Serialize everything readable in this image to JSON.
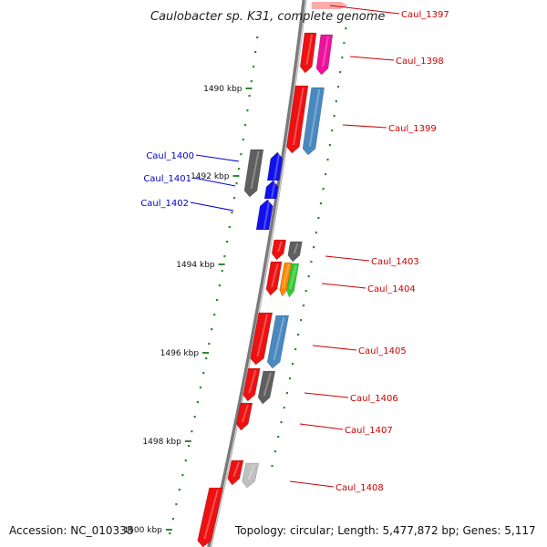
{
  "title": "Caulobacter sp. K31, complete genome",
  "footer": {
    "accession": "Accession: NC_010338",
    "summary": "Topology: circular; Length: 5,477,872 bp; Genes: 5,117"
  },
  "colors": {
    "backbone": "#7a7a7a",
    "tick": "#2e8b2e",
    "label_right": "#cc0000",
    "label_left": "#0000cc",
    "red": "#ee1111",
    "magenta": "#ee1199",
    "steelblue": "#4a88c0",
    "darkgray": "#5f5f5f",
    "lightgray": "#c0c0c0",
    "blue": "#1111ee",
    "orange": "#ff8800",
    "green": "#33cc33"
  },
  "ticks": [
    {
      "label": "1490 kbp"
    },
    {
      "label": "1492 kbp"
    },
    {
      "label": "1494 kbp"
    },
    {
      "label": "1496 kbp"
    },
    {
      "label": "1498 kbp"
    },
    {
      "label": "1500 kbp"
    }
  ],
  "genes": [
    {
      "name": "Caul_1397",
      "side": "right"
    },
    {
      "name": "Caul_1398",
      "side": "right"
    },
    {
      "name": "Caul_1399",
      "side": "right"
    },
    {
      "name": "Caul_1400",
      "side": "left"
    },
    {
      "name": "Caul_1401",
      "side": "left"
    },
    {
      "name": "Caul_1402",
      "side": "left"
    },
    {
      "name": "Caul_1403",
      "side": "right"
    },
    {
      "name": "Caul_1404",
      "side": "right"
    },
    {
      "name": "Caul_1405",
      "side": "right"
    },
    {
      "name": "Caul_1406",
      "side": "right"
    },
    {
      "name": "Caul_1407",
      "side": "right"
    },
    {
      "name": "Caul_1408",
      "side": "right"
    }
  ]
}
